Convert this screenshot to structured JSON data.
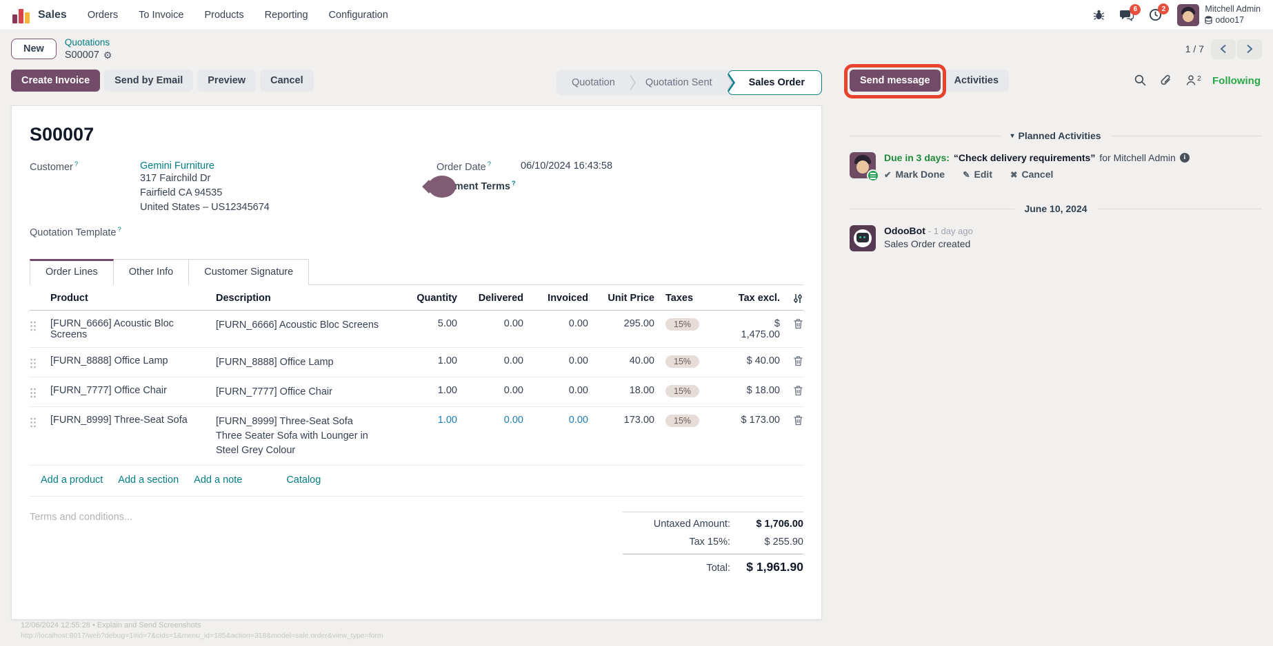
{
  "nav": {
    "app_name": "Sales",
    "items": [
      "Orders",
      "To Invoice",
      "Products",
      "Reporting",
      "Configuration"
    ],
    "messages_badge": "6",
    "activities_badge": "2",
    "user_name": "Mitchell Admin",
    "database": "odoo17"
  },
  "breadcrumb": {
    "new_button": "New",
    "parent": "Quotations",
    "current": "S00007",
    "pager": "1 / 7"
  },
  "actions": {
    "create_invoice": "Create Invoice",
    "send_by_email": "Send by Email",
    "preview": "Preview",
    "cancel": "Cancel",
    "send_message": "Send message",
    "activities": "Activities",
    "following": "Following",
    "followers_count": "2"
  },
  "statusbar": {
    "steps": [
      "Quotation",
      "Quotation Sent",
      "Sales Order"
    ],
    "active_step": "Sales Order"
  },
  "form": {
    "title": "S00007",
    "help_marker": "?",
    "customer_label": "Customer",
    "customer_name": "Gemini Furniture",
    "address_lines": [
      "317 Fairchild Dr",
      "Fairfield CA 94535",
      "United States – US12345674"
    ],
    "quotation_template_label": "Quotation Template",
    "order_date_label": "Order Date",
    "order_date_value": "06/10/2024 16:43:58",
    "payment_terms_label": "Payment Terms"
  },
  "tabs": [
    "Order Lines",
    "Other Info",
    "Customer Signature"
  ],
  "order_lines": {
    "columns": [
      "Product",
      "Description",
      "Quantity",
      "Delivered",
      "Invoiced",
      "Unit Price",
      "Taxes",
      "Tax excl."
    ],
    "rows": [
      {
        "product": "[FURN_6666] Acoustic Bloc Screens",
        "description": [
          "[FURN_6666] Acoustic Bloc Screens"
        ],
        "quantity": "5.00",
        "delivered": "0.00",
        "invoiced": "0.00",
        "unit_price": "295.00",
        "taxes": "15%",
        "tax_excl": "$ 1,475.00",
        "highlight": false
      },
      {
        "product": "[FURN_8888] Office Lamp",
        "description": [
          "[FURN_8888] Office Lamp"
        ],
        "quantity": "1.00",
        "delivered": "0.00",
        "invoiced": "0.00",
        "unit_price": "40.00",
        "taxes": "15%",
        "tax_excl": "$ 40.00",
        "highlight": false
      },
      {
        "product": "[FURN_7777] Office Chair",
        "description": [
          "[FURN_7777] Office Chair"
        ],
        "quantity": "1.00",
        "delivered": "0.00",
        "invoiced": "0.00",
        "unit_price": "18.00",
        "taxes": "15%",
        "tax_excl": "$ 18.00",
        "highlight": false
      },
      {
        "product": "[FURN_8999] Three-Seat Sofa",
        "description": [
          "[FURN_8999] Three-Seat Sofa",
          "Three Seater Sofa with Lounger in",
          "Steel Grey Colour"
        ],
        "quantity": "1.00",
        "delivered": "0.00",
        "invoiced": "0.00",
        "unit_price": "173.00",
        "taxes": "15%",
        "tax_excl": "$ 173.00",
        "highlight": true
      }
    ],
    "footer_links": [
      "Add a product",
      "Add a section",
      "Add a note"
    ],
    "catalog_link": "Catalog"
  },
  "terms_placeholder": "Terms and conditions...",
  "totals": {
    "untaxed_label": "Untaxed Amount:",
    "untaxed_value": "$ 1,706.00",
    "tax_label": "Tax 15%:",
    "tax_value": "$ 255.90",
    "total_label": "Total:",
    "total_value": "$ 1,961.90"
  },
  "chatter": {
    "planned_activities_title": "Planned Activities",
    "activity": {
      "due": "Due in 3 days:",
      "title": "“Check delivery requirements”",
      "assignee": "for Mitchell Admin",
      "mark_done": "Mark Done",
      "edit": "Edit",
      "cancel": "Cancel"
    },
    "date_divider": "June 10, 2024",
    "message": {
      "author": "OdooBot",
      "time": "- 1 day ago",
      "body": "Sales Order created"
    }
  },
  "status_footer": {
    "line1": "12/06/2024 12:55:28 • Explain and Send Screenshots",
    "line2": "http://localhost:8017/web?debug=1#id=7&cids=1&menu_id=185&action=318&model=sale.order&view_type=form"
  },
  "colors": {
    "primary": "#714B67",
    "link": "#017E84",
    "success": "#28a745",
    "annotation": "#E8432D",
    "badge": "#E7503F"
  }
}
